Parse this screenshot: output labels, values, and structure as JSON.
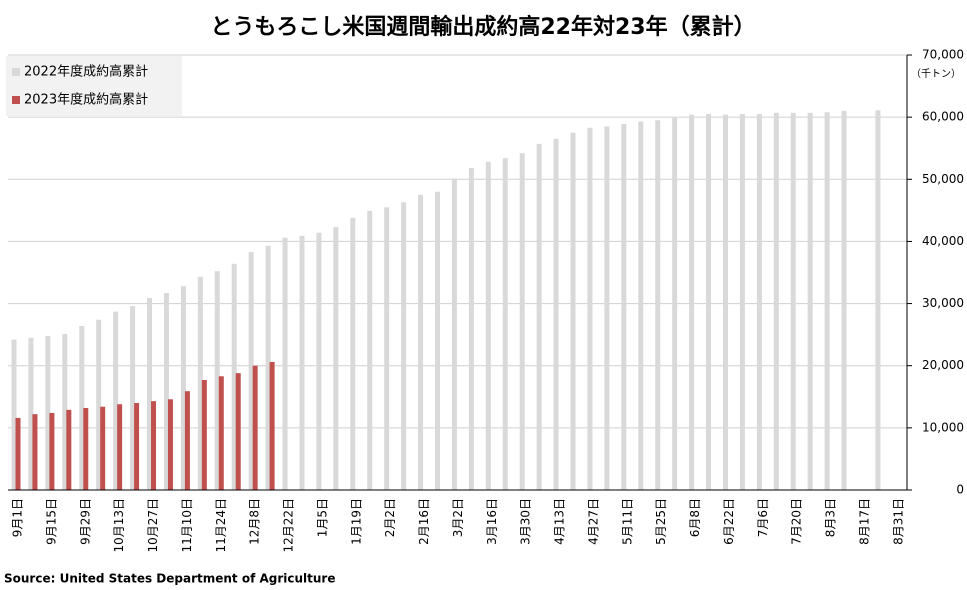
{
  "chart_data": {
    "type": "bar",
    "title": "とうもろこし米国週間輸出成約高22年対23年（累計）",
    "y_unit": "（千トン）",
    "source": "Source: United States Department of Agriculture",
    "categories": [
      "9月1日",
      null,
      "9月15日",
      null,
      "9月29日",
      null,
      "10月13日",
      null,
      "10月27日",
      null,
      "11月10日",
      null,
      "11月24日",
      null,
      "12月8日",
      null,
      "12月22日",
      null,
      "1月5日",
      null,
      "1月19日",
      null,
      "2月2日",
      null,
      "2月16日",
      null,
      "3月2日",
      null,
      "3月16日",
      null,
      "3月30日",
      null,
      "4月13日",
      null,
      "4月27日",
      null,
      "5月11日",
      null,
      "5月25日",
      null,
      "6月8日",
      null,
      "6月22日",
      null,
      "7月6日",
      null,
      "7月20日",
      null,
      "8月3日",
      null,
      "8月17日",
      null,
      "8月31日"
    ],
    "series": [
      {
        "name": "2022年度成約高累計",
        "color": "#d9d9d9",
        "values": [
          24200,
          24500,
          24800,
          25100,
          26400,
          27400,
          28700,
          29600,
          30900,
          31700,
          32800,
          34300,
          35200,
          36400,
          38300,
          39300,
          40600,
          40900,
          41400,
          42300,
          43800,
          44900,
          45500,
          46300,
          47500,
          48000,
          50100,
          51800,
          52800,
          53400,
          54200,
          55700,
          56500,
          57500,
          58300,
          58500,
          58900,
          59300,
          59500,
          59900,
          60400,
          60500,
          60400,
          60500,
          60500,
          60700,
          60700,
          60700,
          60800,
          61000,
          null,
          61100,
          null
        ]
      },
      {
        "name": "2023年度成約高累計",
        "color": "#c0504d",
        "values": [
          11600,
          12200,
          12400,
          12900,
          13200,
          13400,
          13800,
          14000,
          14300,
          14600,
          15900,
          17700,
          18300,
          18800,
          20000,
          20600,
          null,
          null,
          null,
          null,
          null,
          null,
          null,
          null,
          null,
          null,
          null,
          null,
          null,
          null,
          null,
          null,
          null,
          null,
          null,
          null,
          null,
          null,
          null,
          null,
          null,
          null,
          null,
          null,
          null,
          null,
          null,
          null,
          null,
          null,
          null,
          null,
          null
        ]
      }
    ],
    "ylim": [
      0,
      70000
    ],
    "yticks": [
      0,
      {
        "value": 10000,
        "label": "10,000"
      },
      {
        "value": 20000,
        "label": "20,000"
      },
      {
        "value": 30000,
        "label": "30,000"
      },
      {
        "value": 40000,
        "label": "40,000"
      },
      {
        "value": 50000,
        "label": "50,000"
      },
      {
        "value": 60000,
        "label": "60,000"
      },
      {
        "value": 70000,
        "label": "70,000"
      }
    ],
    "grid": true,
    "legend": "top-left"
  }
}
